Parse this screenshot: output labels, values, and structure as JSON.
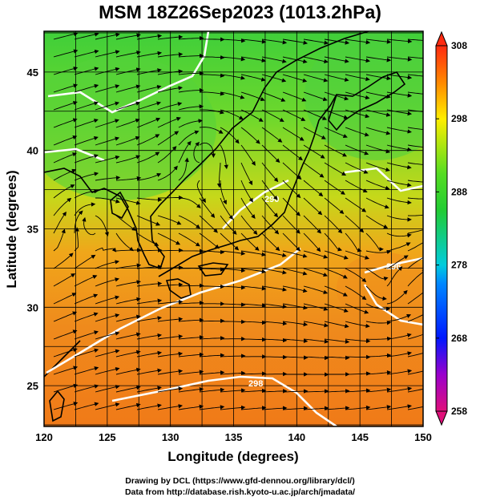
{
  "title": "MSM 18Z26Sep2023 (1013.2hPa)",
  "x_axis": {
    "label": "Longitude (degrees)",
    "ticks": [
      "120",
      "125",
      "130",
      "135",
      "140",
      "145",
      "150"
    ],
    "range": [
      120,
      150
    ]
  },
  "y_axis": {
    "label": "Latitude  (degrees)",
    "ticks": [
      "25",
      "30",
      "35",
      "40",
      "45"
    ],
    "range": [
      22.4,
      47.6
    ]
  },
  "colorbar": {
    "ticks": [
      "258",
      "268",
      "278",
      "288",
      "298",
      "308"
    ],
    "range": [
      258,
      308
    ],
    "colors": [
      "#cc00cc",
      "#0000ff",
      "#00ccff",
      "#00cc33",
      "#ffff00",
      "#ff6600",
      "#ff0000"
    ]
  },
  "contour_labels": [
    "290",
    "296",
    "298"
  ],
  "footer": {
    "line1": "Drawing by DCL (https://www.gfd-dennou.org/library/dcl/)",
    "line2": "Data from http://database.rish.kyoto-u.ac.jp/arch/jmadata/"
  }
}
